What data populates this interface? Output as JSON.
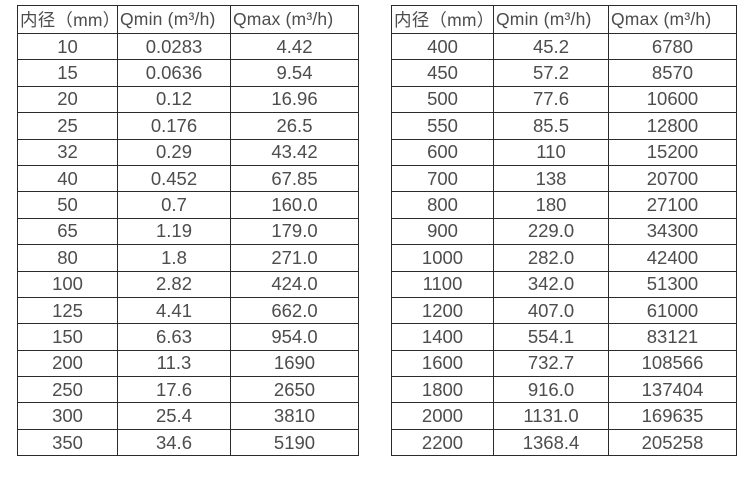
{
  "page": {
    "background": "#ffffff",
    "text_color": "#4d4d4d",
    "border_color": "#2b2b2b"
  },
  "tables": [
    {
      "headers": [
        "内径（mm）",
        "Qmin (m³/h)",
        "Qmax (m³/h)"
      ],
      "rows": [
        [
          "10",
          "0.0283",
          "4.42"
        ],
        [
          "15",
          "0.0636",
          "9.54"
        ],
        [
          "20",
          "0.12",
          "16.96"
        ],
        [
          "25",
          "0.176",
          "26.5"
        ],
        [
          "32",
          "0.29",
          "43.42"
        ],
        [
          "40",
          "0.452",
          "67.85"
        ],
        [
          "50",
          "0.7",
          "160.0"
        ],
        [
          "65",
          "1.19",
          "179.0"
        ],
        [
          "80",
          "1.8",
          "271.0"
        ],
        [
          "100",
          "2.82",
          "424.0"
        ],
        [
          "125",
          "4.41",
          "662.0"
        ],
        [
          "150",
          "6.63",
          "954.0"
        ],
        [
          "200",
          "11.3",
          "1690"
        ],
        [
          "250",
          "17.6",
          "2650"
        ],
        [
          "300",
          "25.4",
          "3810"
        ],
        [
          "350",
          "34.6",
          "5190"
        ]
      ]
    },
    {
      "headers": [
        "内径（mm）",
        "Qmin (m³/h)",
        "Qmax (m³/h)"
      ],
      "rows": [
        [
          "400",
          "45.2",
          "6780"
        ],
        [
          "450",
          "57.2",
          "8570"
        ],
        [
          "500",
          "77.6",
          "10600"
        ],
        [
          "550",
          "85.5",
          "12800"
        ],
        [
          "600",
          "110",
          "15200"
        ],
        [
          "700",
          "138",
          "20700"
        ],
        [
          "800",
          "180",
          "27100"
        ],
        [
          "900",
          "229.0",
          "34300"
        ],
        [
          "1000",
          "282.0",
          "42400"
        ],
        [
          "1100",
          "342.0",
          "51300"
        ],
        [
          "1200",
          "407.0",
          "61000"
        ],
        [
          "1400",
          "554.1",
          "83121"
        ],
        [
          "1600",
          "732.7",
          "108566"
        ],
        [
          "1800",
          "916.0",
          "137404"
        ],
        [
          "2000",
          "1131.0",
          "169635"
        ],
        [
          "2200",
          "1368.4",
          "205258"
        ]
      ]
    }
  ]
}
